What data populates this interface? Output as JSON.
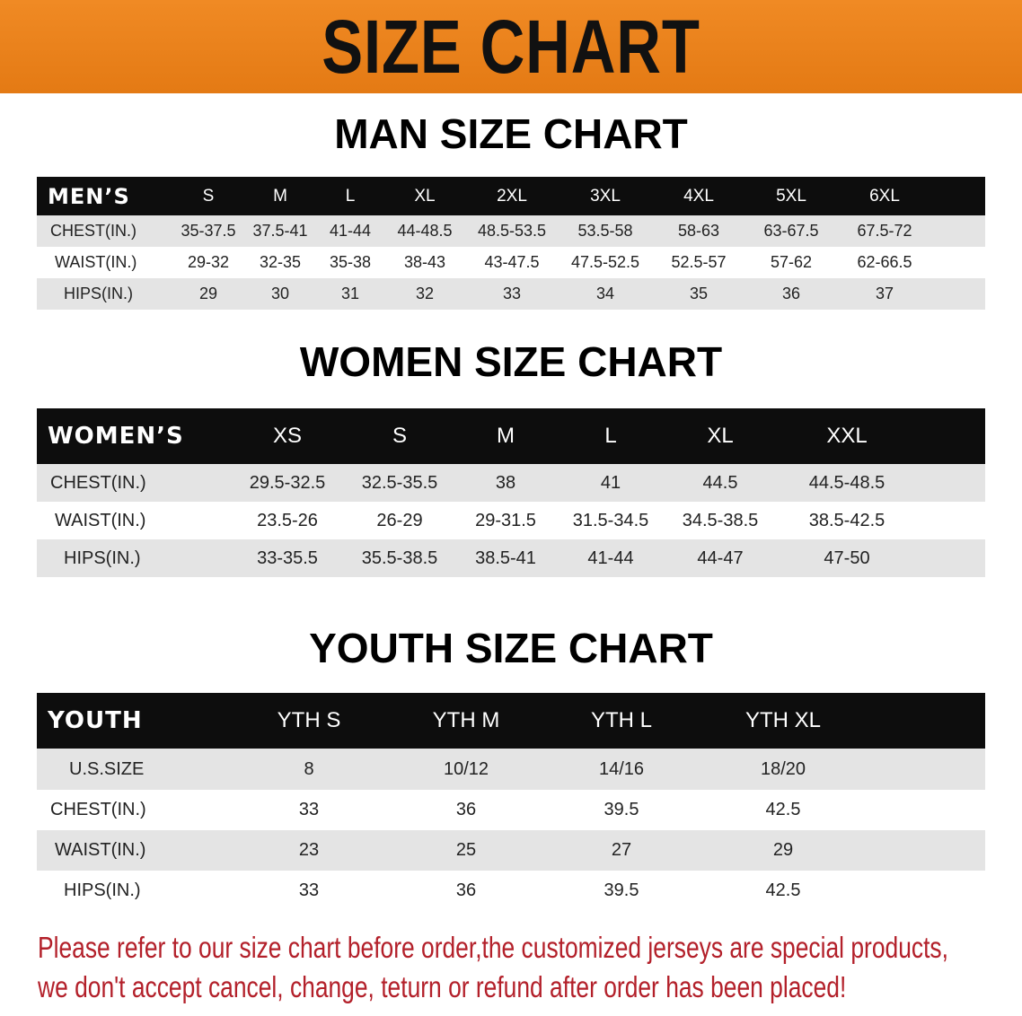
{
  "title": "SIZE CHART",
  "colors": {
    "banner": "#e8801e",
    "header_row": "#0d0d0d",
    "stripe": "#e4e4e4",
    "note": "#b3202a"
  },
  "tables": [
    {
      "heading": "MAN SIZE CHART",
      "header": "MEN’S",
      "columns": [
        "S",
        "M",
        "L",
        "XL",
        "2XL",
        "3XL",
        "4XL",
        "5XL",
        "6XL"
      ],
      "rows": [
        {
          "label": "CHEST(IN.)",
          "values": [
            "35-37.5",
            "37.5-41",
            "41-44",
            "44-48.5",
            "48.5-53.5",
            "53.5-58",
            "58-63",
            "63-67.5",
            "67.5-72"
          ]
        },
        {
          "label": "WAIST(IN.)",
          "values": [
            "29-32",
            "32-35",
            "35-38",
            "38-43",
            "43-47.5",
            "47.5-52.5",
            "52.5-57",
            "57-62",
            "62-66.5"
          ]
        },
        {
          "label": "HIPS(IN.)",
          "values": [
            "29",
            "30",
            "31",
            "32",
            "33",
            "34",
            "35",
            "36",
            "37"
          ]
        }
      ]
    },
    {
      "heading": "WOMEN SIZE CHART",
      "header": "WOMEN’S",
      "columns": [
        "XS",
        "S",
        "M",
        "L",
        "XL",
        "XXL"
      ],
      "rows": [
        {
          "label": "CHEST(IN.)",
          "values": [
            "29.5-32.5",
            "32.5-35.5",
            "38",
            "41",
            "44.5",
            "44.5-48.5"
          ]
        },
        {
          "label": "WAIST(IN.)",
          "values": [
            "23.5-26",
            "26-29",
            "29-31.5",
            "31.5-34.5",
            "34.5-38.5",
            "38.5-42.5"
          ]
        },
        {
          "label": "HIPS(IN.)",
          "values": [
            "33-35.5",
            "35.5-38.5",
            "38.5-41",
            "41-44",
            "44-47",
            "47-50"
          ]
        }
      ]
    },
    {
      "heading": "YOUTH SIZE CHART",
      "header": "YOUTH",
      "columns": [
        "YTH S",
        "YTH M",
        "YTH L",
        "YTH XL"
      ],
      "rows": [
        {
          "label": "U.S.SIZE",
          "values": [
            "8",
            "10/12",
            "14/16",
            "18/20"
          ]
        },
        {
          "label": "CHEST(IN.)",
          "values": [
            "33",
            "36",
            "39.5",
            "42.5"
          ]
        },
        {
          "label": "WAIST(IN.)",
          "values": [
            "23",
            "25",
            "27",
            "29"
          ]
        },
        {
          "label": "HIPS(IN.)",
          "values": [
            "33",
            "36",
            "39.5",
            "42.5"
          ]
        }
      ]
    }
  ],
  "note": [
    "Please refer to our size chart before order,the customized jerseys are special products,",
    "we don't accept cancel, change, teturn or refund after order has been placed!"
  ]
}
